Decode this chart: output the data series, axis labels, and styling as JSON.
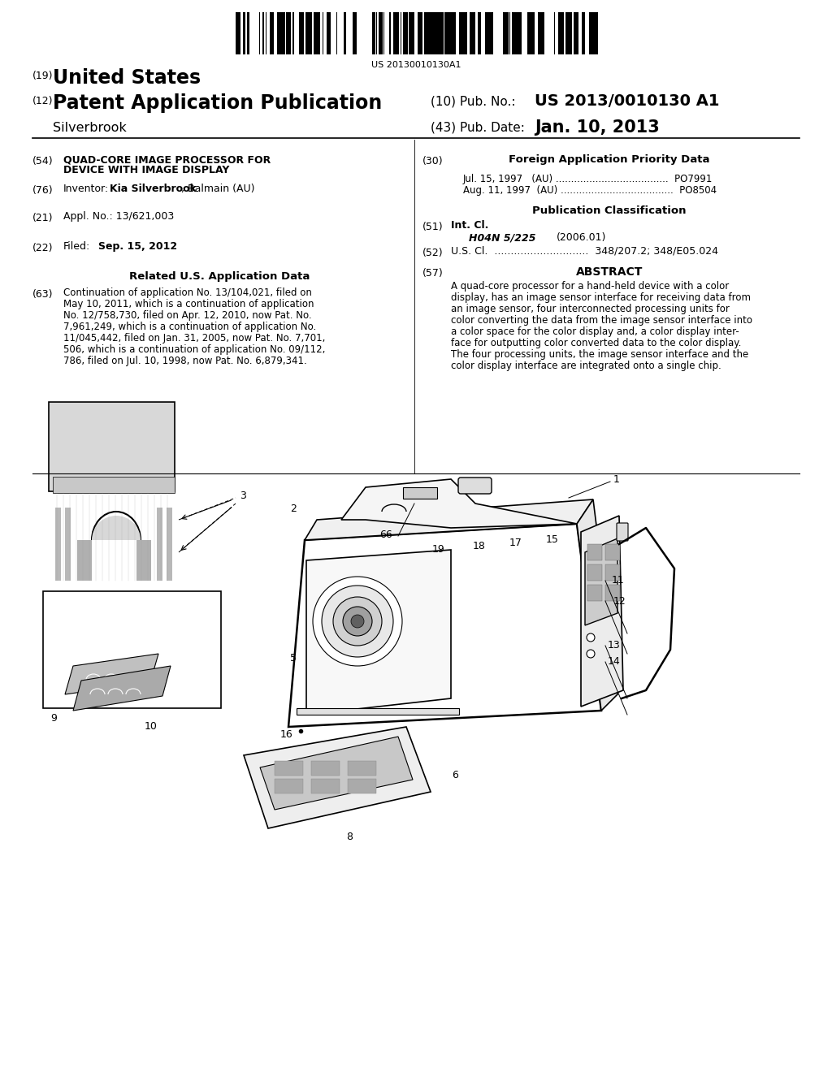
{
  "background_color": "#ffffff",
  "barcode_text": "US 20130010130A1",
  "patent_number": "US 2013/0010130 A1",
  "pub_date": "Jan. 10, 2013",
  "country": "United States",
  "doc_type": "Patent Application Publication",
  "assignee": "Silverbrook",
  "title_line1": "QUAD-CORE IMAGE PROCESSOR FOR",
  "title_line2": "DEVICE WITH IMAGE DISPLAY",
  "inventor_name": "Kia Silverbrook",
  "inventor_location": ", Balmain (AU)",
  "appl_no": "13/621,003",
  "filed_date": "Sep. 15, 2012",
  "foreign_line1_date": "Jul. 15, 1997",
  "foreign_line1_country": "(AU) .....................................",
  "foreign_line1_num": "PO7991",
  "foreign_line2_date": "Aug. 11, 1997",
  "foreign_line2_country": "(AU) .....................................",
  "foreign_line2_num": "PO8504",
  "intcl_class": "H04N 5/225",
  "intcl_year": "(2006.01)",
  "uscl_value": "348/207.2; 348/E05.024",
  "abstract_lines": [
    "A quad-core processor for a hand-held device with a color",
    "display, has an image sensor interface for receiving data from",
    "an image sensor, four interconnected processing units for",
    "color converting the data from the image sensor interface into",
    "a color space for the color display and, a color display inter-",
    "face for outputting color converted data to the color display.",
    "The four processing units, the image sensor interface and the",
    "color display interface are integrated onto a single chip."
  ],
  "related_lines": [
    "Continuation of application No. 13/104,021, filed on",
    "May 10, 2011, which is a continuation of application",
    "No. 12/758,730, filed on Apr. 12, 2010, now Pat. No.",
    "7,961,249, which is a continuation of application No.",
    "11/045,442, filed on Jan. 31, 2005, now Pat. No. 7,701,",
    "506, which is a continuation of application No. 09/112,",
    "786, filed on Jul. 10, 1998, now Pat. No. 6,879,341."
  ]
}
